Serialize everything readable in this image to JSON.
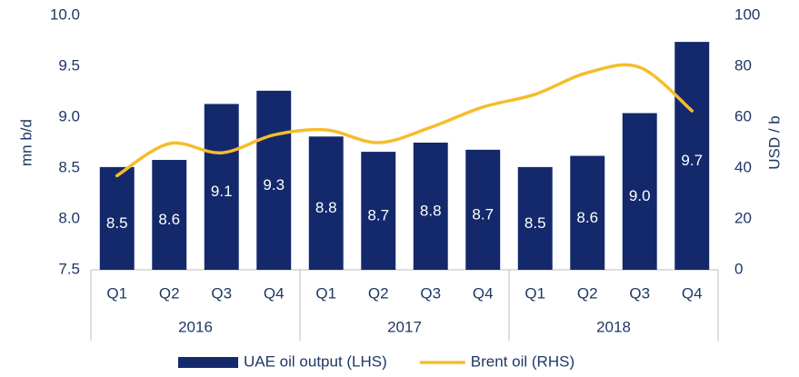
{
  "chart_data": {
    "type": "bar",
    "categories": [
      "Q1",
      "Q2",
      "Q3",
      "Q4",
      "Q1",
      "Q2",
      "Q3",
      "Q4",
      "Q1",
      "Q2",
      "Q3",
      "Q4"
    ],
    "groups": [
      "2016",
      "2017",
      "2018"
    ],
    "yaxis_label": "mn b/d",
    "y2axis_label": "USD / b",
    "ylim": [
      7.5,
      10.0
    ],
    "yticks": [
      7.5,
      {
        "value": 8,
        "label": "8.0"
      },
      8.5,
      {
        "value": 9,
        "label": "9.0"
      },
      9.5,
      {
        "value": 10,
        "label": "10.0"
      }
    ],
    "y2lim": [
      0,
      100
    ],
    "y2ticks": [
      0,
      20,
      40,
      60,
      80,
      100
    ],
    "series": [
      {
        "name": "UAE oil output (LHS)",
        "type": "bar",
        "color": "#14296c",
        "values": [
          8.51,
          8.58,
          9.13,
          9.26,
          8.81,
          8.66,
          8.75,
          8.68,
          8.51,
          8.62,
          9.04,
          9.74
        ],
        "value_labels": [
          "8.5",
          "8.6",
          "9.1",
          "9.3",
          "8.8",
          "8.7",
          "8.8",
          "8.7",
          "8.5",
          "8.6",
          "9.0",
          "9.7"
        ]
      },
      {
        "name": "Brent oil (RHS)",
        "type": "line",
        "axis": "y2",
        "color": "#f5bd2b",
        "values": [
          37,
          49.6,
          46,
          53,
          55,
          50,
          56,
          64,
          69,
          77.5,
          79.6,
          62.5
        ]
      }
    ],
    "legend": "bottom"
  }
}
